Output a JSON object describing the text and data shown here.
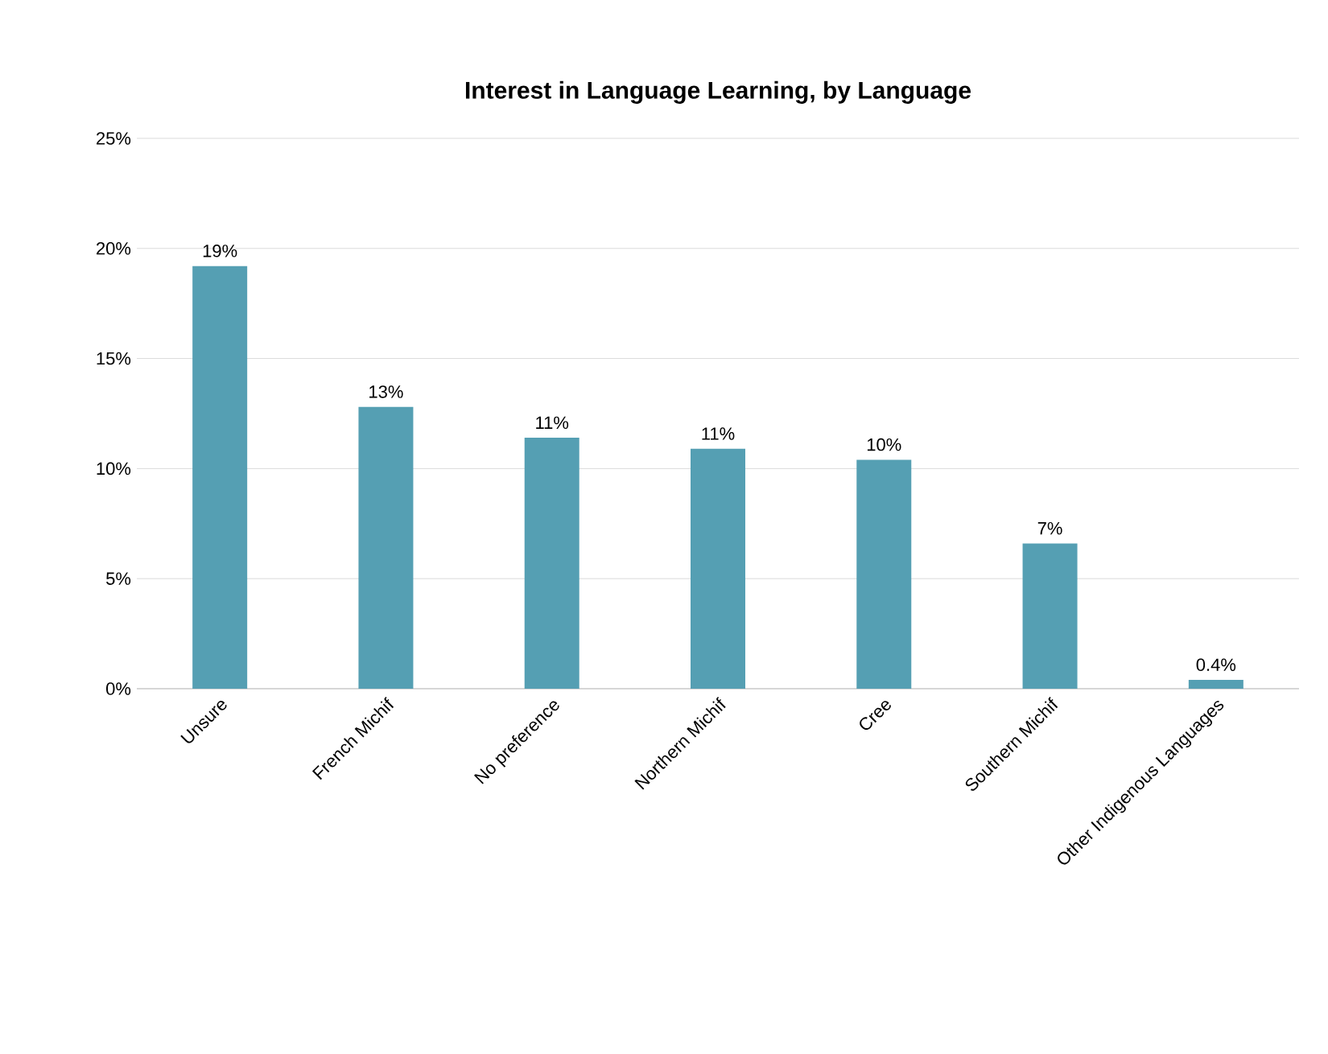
{
  "chart_data": {
    "type": "bar",
    "title": "Interest in Language Learning, by Language",
    "categories": [
      "Unsure",
      "French Michif",
      "No preference",
      "Northern Michif",
      "Cree",
      "Southern Michif",
      "Other Indigenous Languages"
    ],
    "values": [
      19.2,
      12.8,
      11.4,
      10.9,
      10.4,
      6.6,
      0.4
    ],
    "value_labels": [
      "19%",
      "13%",
      "11%",
      "11%",
      "10%",
      "7%",
      "0.4%"
    ],
    "color": "#559fb3",
    "ylim": [
      0,
      25
    ],
    "yticks": [
      {
        "value": 0,
        "label": "0%"
      },
      {
        "value": 5,
        "label": "5%"
      },
      {
        "value": 10,
        "label": "10%"
      },
      {
        "value": 15,
        "label": "15%"
      },
      {
        "value": 20,
        "label": "20%"
      },
      {
        "value": 25,
        "label": "25%"
      }
    ],
    "grid": "y"
  }
}
